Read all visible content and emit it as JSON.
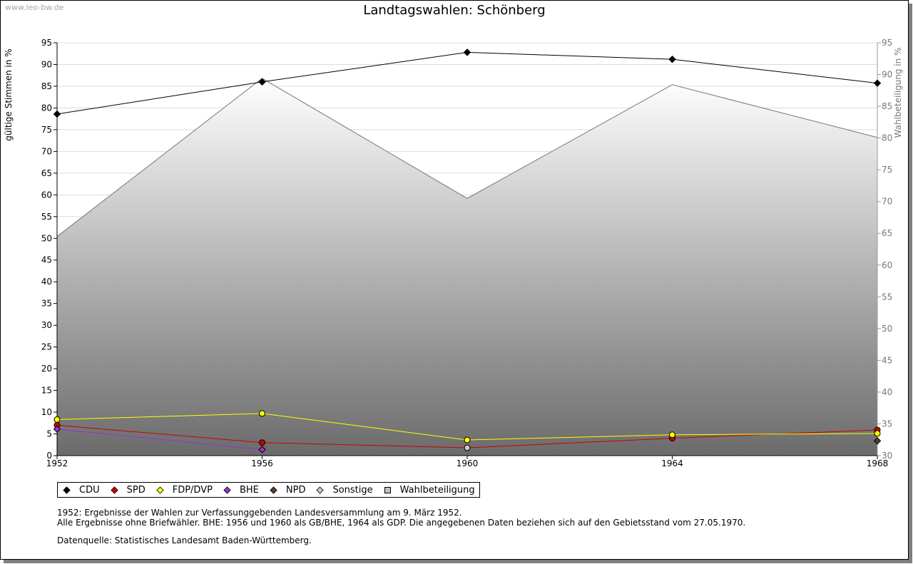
{
  "watermark": "www.leo-bw.de",
  "chart_data": {
    "type": "line",
    "title": "Landtagswahlen: Schönberg",
    "ylabel": "gültige Stimmen in %",
    "y2label": "Wahlbeteiligung in %",
    "xlabel": "",
    "categories": [
      "1952",
      "1956",
      "1960",
      "1964",
      "1968"
    ],
    "ylim": [
      0,
      95
    ],
    "y2lim": [
      30,
      95
    ],
    "yticks": [
      0,
      5,
      10,
      15,
      20,
      25,
      30,
      35,
      40,
      45,
      50,
      55,
      60,
      65,
      70,
      75,
      80,
      85,
      90,
      95
    ],
    "y2ticks": [
      30,
      35,
      40,
      45,
      50,
      55,
      60,
      65,
      70,
      75,
      80,
      85,
      90,
      95
    ],
    "grid": true,
    "legend_position": "bottom-left",
    "series": [
      {
        "name": "CDU",
        "color": "#000000",
        "marker": "diamond",
        "values": [
          78.6,
          86.0,
          92.8,
          91.2,
          85.7
        ]
      },
      {
        "name": "SPD",
        "color": "#cc0000",
        "marker": "circle",
        "values": [
          7.0,
          3.0,
          1.8,
          4.0,
          5.9
        ]
      },
      {
        "name": "FDP/DVP",
        "color": "#ffff00",
        "marker": "circle",
        "values": [
          8.3,
          9.7,
          3.6,
          4.8,
          5.1
        ]
      },
      {
        "name": "BHE",
        "color": "#9933cc",
        "marker": "diamond",
        "values": [
          6.1,
          1.4,
          null,
          null,
          null
        ]
      },
      {
        "name": "NPD",
        "color": "#5a3d2b",
        "marker": "diamond",
        "values": [
          null,
          null,
          null,
          null,
          3.4
        ]
      },
      {
        "name": "Sonstige",
        "color": "#c8c8c8",
        "marker": "circle",
        "values": [
          null,
          null,
          1.8,
          null,
          null
        ]
      }
    ],
    "turnout": {
      "name": "Wahlbeteiligung",
      "axis": "right",
      "values": [
        64.5,
        89.4,
        70.5,
        88.4,
        80.1
      ]
    }
  },
  "notes": {
    "line1": "1952: Ergebnisse der Wahlen zur Verfassunggebenden Landesversammlung am 9. März 1952.",
    "line2": "Alle Ergebnisse ohne Briefwähler. BHE: 1956 und 1960 als GB/BHE, 1964 als GDP. Die angegebenen Daten beziehen sich auf den Gebietsstand vom 27.05.1970.",
    "source": "Datenquelle: Statistisches Landesamt Baden-Württemberg."
  }
}
